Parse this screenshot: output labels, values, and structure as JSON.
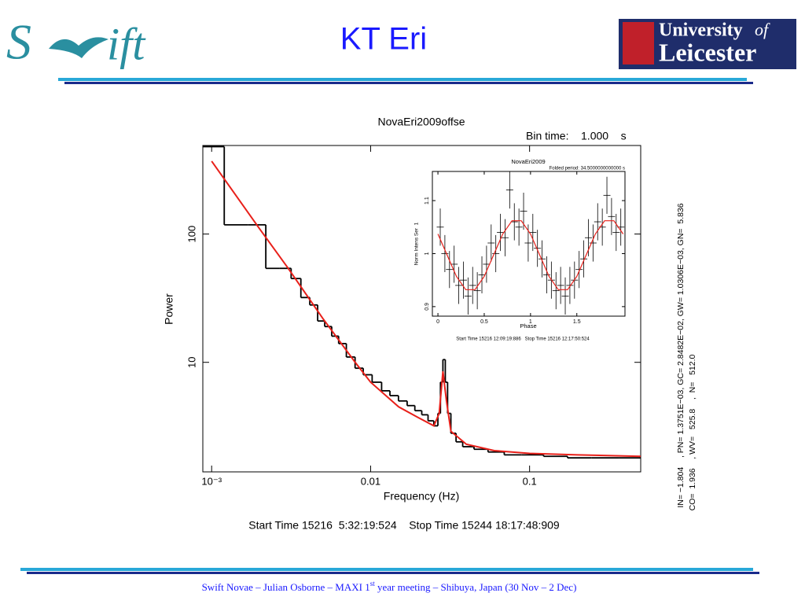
{
  "slide": {
    "title": "KT Eri",
    "logo_left": [
      "S",
      "ift"
    ],
    "logo_right": [
      "University",
      "of",
      "Leicester"
    ],
    "footer": [
      "Swift Novae – Julian Osborne – MAXI 1",
      "st",
      " year meeting – Shibuya, Japan (30 Nov – 2 Dec)"
    ]
  },
  "chart_data": [
    {
      "type": "line",
      "title": "NovaEri2009offse",
      "subtitle": "Bin time:    1.000    s",
      "x_label": "Frequency (Hz)",
      "y_label": "Power",
      "footer": "Start Time 15216  5:32:19:524    Stop Time 15244 18:17:48:909",
      "annotations": [
        "IN= −1.804    , PN= 1.3751E−03, GC= 2.8482E−02, GW= 1.0306E−03, GN=  5.836",
        "CO=  1.936    , WV=   525.8    ,  N=   512.0"
      ],
      "xlog": true,
      "ylog": true,
      "xlim": [
        0.00088,
        0.5
      ],
      "ylim": [
        1.4,
        490
      ],
      "xticks": [
        {
          "value": 0.001,
          "label": "10⁻³"
        },
        0.01,
        0.1
      ],
      "yticks": [
        10,
        100
      ],
      "series": [
        {
          "color": "#000000",
          "step": true,
          "x": [
            0.00098,
            0.00147,
            0.00196,
            0.00245,
            0.00294,
            0.0034,
            0.0039,
            0.0044,
            0.0049,
            0.0054,
            0.006,
            0.0066,
            0.0075,
            0.0085,
            0.0095,
            0.011,
            0.0125,
            0.014,
            0.016,
            0.018,
            0.02,
            0.022,
            0.024,
            0.026,
            0.027,
            0.028,
            0.029,
            0.03,
            0.031,
            0.033,
            0.036,
            0.04,
            0.05,
            0.06,
            0.08,
            0.1,
            0.15,
            0.2,
            0.3,
            0.45
          ],
          "values": [
            480,
            118,
            118,
            54,
            54,
            45,
            32,
            28,
            21,
            19,
            16,
            14,
            11,
            9,
            8,
            7,
            6,
            5.5,
            5,
            4.6,
            4.2,
            3.9,
            3.5,
            3.2,
            4,
            7,
            10.5,
            7,
            4,
            2.8,
            2.4,
            2.2,
            2.1,
            2.0,
            1.9,
            1.9,
            1.85,
            1.8,
            1.8,
            1.8
          ]
        },
        {
          "color": "#e8201a",
          "x": [
            0.001,
            0.002,
            0.003,
            0.005,
            0.008,
            0.01,
            0.015,
            0.02,
            0.025,
            0.027,
            0.0285,
            0.03,
            0.032,
            0.04,
            0.06,
            0.1,
            0.2,
            0.5
          ],
          "values": [
            370,
            110,
            55,
            22,
            10,
            7,
            4.5,
            3.7,
            3.2,
            4,
            8.5,
            5,
            2.9,
            2.3,
            2.05,
            1.95,
            1.9,
            1.85
          ]
        }
      ]
    },
    {
      "type": "scatter",
      "title": "NovaEri2009",
      "subtitle": "Folded period: 34.5000000000000 s",
      "x_label": "Phase",
      "y_label": "Norm Intens Ser  1",
      "footer": "Start Time 15216 12:09:19:886   Stop Time 15216 12:17:50:524",
      "xlim": [
        -0.06,
        2.02
      ],
      "ylim": [
        0.882,
        1.155
      ],
      "xticks": [
        0,
        0.5,
        1,
        1.5
      ],
      "yticks": [
        0.9,
        1,
        1.1
      ],
      "series": [
        {
          "color": "#000000",
          "x": [
            0.025,
            0.075,
            0.125,
            0.175,
            0.225,
            0.275,
            0.325,
            0.375,
            0.425,
            0.475,
            0.525,
            0.575,
            0.625,
            0.675,
            0.725,
            0.775,
            0.825,
            0.875,
            0.925,
            0.975,
            1.025,
            1.075,
            1.125,
            1.175,
            1.225,
            1.275,
            1.325,
            1.375,
            1.425,
            1.475,
            1.525,
            1.575,
            1.625,
            1.675,
            1.725,
            1.775,
            1.825,
            1.875,
            1.925,
            1.975
          ],
          "values": [
            1.05,
            1.0,
            0.97,
            0.98,
            0.94,
            0.95,
            0.92,
            0.94,
            0.93,
            0.96,
            0.98,
            1.02,
            1.0,
            1.04,
            1.03,
            1.12,
            1.06,
            1.05,
            1.08,
            1.02,
            1.04,
            1.01,
            0.99,
            0.96,
            0.95,
            0.93,
            0.94,
            0.92,
            0.94,
            0.95,
            0.97,
            0.99,
            1.03,
            1.02,
            1.06,
            1.05,
            1.11,
            1.07,
            1.04,
            1.05
          ],
          "errors": [
            0.035,
            0.035,
            0.035,
            0.035,
            0.035,
            0.035,
            0.035,
            0.035,
            0.035,
            0.035,
            0.035,
            0.035,
            0.035,
            0.035,
            0.035,
            0.035,
            0.035,
            0.035,
            0.035,
            0.035,
            0.035,
            0.035,
            0.035,
            0.035,
            0.035,
            0.035,
            0.035,
            0.035,
            0.035,
            0.035,
            0.035,
            0.035,
            0.035,
            0.035,
            0.035,
            0.035,
            0.035,
            0.035,
            0.035,
            0.035
          ]
        },
        {
          "color": "#e8201a",
          "line": true,
          "x": [
            0,
            0.1,
            0.2,
            0.3,
            0.4,
            0.5,
            0.6,
            0.7,
            0.8,
            0.9,
            1.0,
            1.1,
            1.2,
            1.3,
            1.4,
            1.5,
            1.6,
            1.7,
            1.8,
            1.9,
            2.0
          ],
          "values": [
            1.037,
            0.997,
            0.957,
            0.932,
            0.932,
            0.957,
            0.997,
            1.037,
            1.062,
            1.062,
            1.037,
            0.997,
            0.957,
            0.932,
            0.932,
            0.957,
            0.997,
            1.037,
            1.062,
            1.062,
            1.037
          ]
        }
      ]
    }
  ]
}
